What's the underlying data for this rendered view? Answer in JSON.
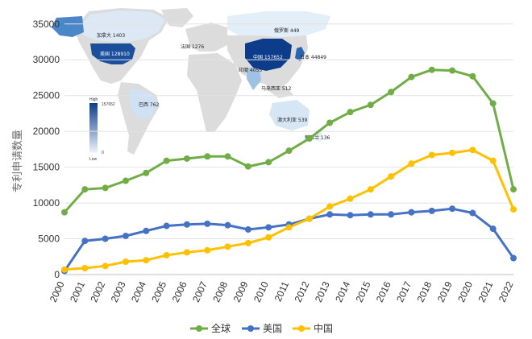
{
  "chart_data": {
    "type": "line",
    "title": "",
    "xlabel": "",
    "ylabel": "专利申请数量",
    "ylim": [
      0,
      37000
    ],
    "yticks": [
      0,
      5000,
      10000,
      15000,
      20000,
      25000,
      30000,
      35000
    ],
    "categories": [
      "2000",
      "2001",
      "2002",
      "2003",
      "2004",
      "2005",
      "2006",
      "2007",
      "2008",
      "2009",
      "2010",
      "2011",
      "2012",
      "2013",
      "2014",
      "2015",
      "2016",
      "2017",
      "2018",
      "2019",
      "2020",
      "2021",
      "2022"
    ],
    "series": [
      {
        "name": "全球",
        "color": "#70ad47",
        "values": [
          8700,
          11900,
          12100,
          13100,
          14200,
          15900,
          16200,
          16500,
          16500,
          15100,
          15700,
          17300,
          19000,
          21200,
          22700,
          23700,
          25500,
          27600,
          28600,
          28500,
          27700,
          23900,
          11900
        ]
      },
      {
        "name": "美国",
        "color": "#4472c4",
        "values": [
          500,
          4700,
          5000,
          5400,
          6100,
          6800,
          7000,
          7100,
          6900,
          6300,
          6600,
          7000,
          7800,
          8400,
          8300,
          8400,
          8400,
          8700,
          8900,
          9200,
          8600,
          6400,
          2300
        ]
      },
      {
        "name": "中国",
        "color": "#ffc000",
        "values": [
          700,
          900,
          1200,
          1800,
          2000,
          2700,
          3100,
          3400,
          3900,
          4400,
          5200,
          6600,
          7800,
          9500,
          10600,
          11900,
          13700,
          15500,
          16700,
          17000,
          17400,
          15900,
          9100
        ]
      }
    ],
    "legend": {
      "position": "bottom"
    },
    "inset_map": {
      "labels": [
        "加拿大 1403",
        "美国 128910",
        "法国 1276",
        "俄罗斯 449",
        "中国 157652",
        "日本 44849",
        "印度 4055",
        "巴西 762",
        "马来西亚 512",
        "澳大利亚 539",
        "新西兰 136"
      ],
      "scale": {
        "high_label": "High",
        "low_label": "Low",
        "max": "157652",
        "min": "0"
      }
    }
  }
}
